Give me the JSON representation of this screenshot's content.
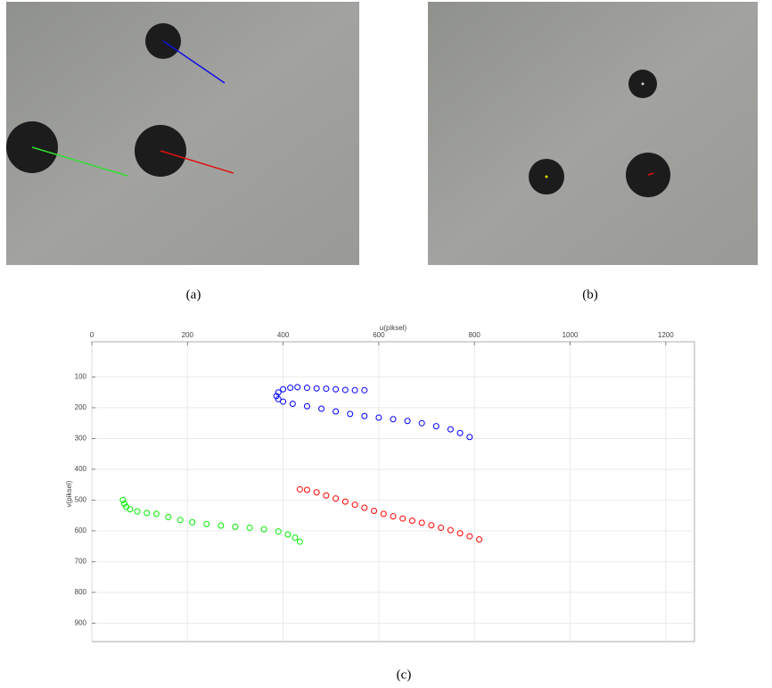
{
  "captions": {
    "a": "(a)",
    "b": "(b)",
    "c": "(c)"
  },
  "chart_data": {
    "type": "scatter",
    "x_label": "u(piksel)",
    "y_label": "v(piksel)",
    "x_axis_position": "top",
    "y_inverted": true,
    "grid": true,
    "marker": "open-circle",
    "xlim": [
      0,
      1260
    ],
    "xticks": [
      0,
      200,
      400,
      600,
      800,
      1000,
      1200
    ],
    "ylim": [
      0,
      960
    ],
    "yticks": [
      100,
      200,
      300,
      400,
      500,
      600,
      700,
      800,
      900
    ],
    "series": [
      {
        "color": "#0000ff",
        "x": [
          570,
          550,
          530,
          510,
          490,
          470,
          450,
          430,
          415,
          400,
          390,
          386,
          390,
          400,
          420,
          450,
          480,
          510,
          540,
          570,
          600,
          630,
          660,
          690,
          720,
          750,
          770,
          790
        ],
        "y": [
          143,
          143,
          142,
          140,
          138,
          137,
          135,
          133,
          135,
          140,
          150,
          162,
          172,
          180,
          187,
          195,
          203,
          212,
          220,
          227,
          232,
          237,
          243,
          250,
          260,
          270,
          282,
          295
        ]
      },
      {
        "color": "#ff0000",
        "x": [
          435,
          450,
          470,
          490,
          510,
          530,
          550,
          570,
          590,
          610,
          630,
          650,
          670,
          690,
          710,
          730,
          750,
          770,
          790,
          810
        ],
        "y": [
          465,
          467,
          475,
          485,
          495,
          505,
          515,
          525,
          535,
          545,
          553,
          560,
          567,
          574,
          582,
          590,
          598,
          608,
          618,
          628
        ]
      },
      {
        "color": "#00ee00",
        "x": [
          65,
          68,
          72,
          80,
          95,
          115,
          135,
          160,
          185,
          210,
          240,
          270,
          300,
          330,
          360,
          390,
          410,
          425,
          435
        ],
        "y": [
          500,
          512,
          522,
          530,
          537,
          542,
          545,
          555,
          565,
          572,
          578,
          583,
          587,
          590,
          595,
          602,
          612,
          622,
          635
        ]
      }
    ]
  }
}
